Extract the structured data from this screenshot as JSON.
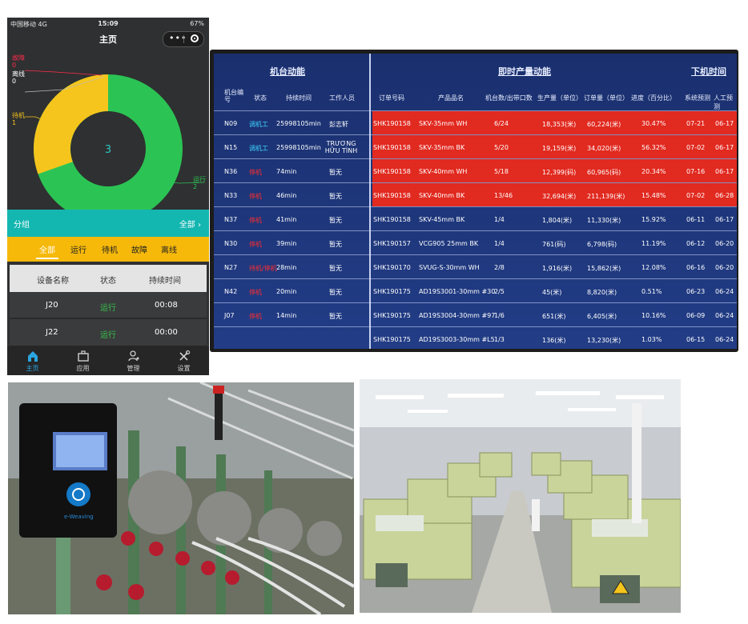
{
  "phone": {
    "status": {
      "carrier": "中国移动 4G",
      "time": "15:09",
      "battery": "67%"
    },
    "title": "主页",
    "donut": {
      "center": "3",
      "legend": [
        {
          "name": "故障",
          "value": "0",
          "color": "#ff2e4d"
        },
        {
          "name": "离线",
          "value": "0",
          "color": "#ffffff"
        },
        {
          "name": "待机",
          "value": "1",
          "color": "#f5c51d"
        },
        {
          "name": "运行",
          "value": "2",
          "color": "#2bc454"
        }
      ]
    },
    "group_label": "分组",
    "group_all": "全部",
    "filter_tabs": [
      "全部",
      "运行",
      "待机",
      "故障",
      "离线"
    ],
    "table": {
      "headers": [
        "设备名称",
        "状态",
        "持续时间"
      ],
      "rows": [
        {
          "name": "J20",
          "status": "运行",
          "duration": "00:08"
        },
        {
          "name": "J22",
          "status": "运行",
          "duration": "00:00"
        }
      ]
    },
    "tabbar": [
      "主页",
      "应用",
      "管理",
      "设置"
    ]
  },
  "board": {
    "sections": [
      "机台动能",
      "即时产量动能",
      "下机时间"
    ],
    "headers": [
      "机台编号",
      "状态",
      "持续时间",
      "工作人员",
      "订单号码",
      "产品品名",
      "机台数/出带口数",
      "生产量（单位）",
      "订单量（单位）",
      "进度（百分比）",
      "系统预测",
      "人工预测"
    ],
    "rows": [
      {
        "id": "N09",
        "state": "调机工",
        "dur": "25998105min",
        "worker": "彭志轩",
        "order": "SHK190158",
        "product": "SKV-35mm WH",
        "ratio": "6/24",
        "output": "18,353(米)",
        "qty": "60,224(米)",
        "progress": "30.47%",
        "sys": "07-21",
        "manual": "06-17",
        "red": true
      },
      {
        "id": "N15",
        "state": "调机工",
        "dur": "25998105min",
        "worker": "TRƯƠNG HỮU TÌNH",
        "order": "SHK190158",
        "product": "SKV-35mm BK",
        "ratio": "5/20",
        "output": "19,159(米)",
        "qty": "34,020(米)",
        "progress": "56.32%",
        "sys": "07-02",
        "manual": "06-17",
        "red": true
      },
      {
        "id": "N36",
        "state": "停机",
        "dur": "74min",
        "worker": "暂无",
        "order": "SHK190158",
        "product": "SKV-40mm WH",
        "ratio": "5/18",
        "output": "12,399(码)",
        "qty": "60,965(码)",
        "progress": "20.34%",
        "sys": "07-16",
        "manual": "06-17",
        "red": true
      },
      {
        "id": "N33",
        "state": "停机",
        "dur": "46min",
        "worker": "暂无",
        "order": "SHK190158",
        "product": "SKV-40mm BK",
        "ratio": "13/46",
        "output": "32,694(米)",
        "qty": "211,139(米)",
        "progress": "15.48%",
        "sys": "07-02",
        "manual": "06-28",
        "red": true
      },
      {
        "id": "N37",
        "state": "停机",
        "dur": "41min",
        "worker": "暂无",
        "order": "SHK190158",
        "product": "SKV-45mm BK",
        "ratio": "1/4",
        "output": "1,804(米)",
        "qty": "11,330(米)",
        "progress": "15.92%",
        "sys": "06-11",
        "manual": "06-17",
        "red": false
      },
      {
        "id": "N30",
        "state": "停机",
        "dur": "39min",
        "worker": "暂无",
        "order": "SHK190157",
        "product": "VCG905 25mm BK",
        "ratio": "1/4",
        "output": "761(码)",
        "qty": "6,798(码)",
        "progress": "11.19%",
        "sys": "06-12",
        "manual": "06-20",
        "red": false
      },
      {
        "id": "N27",
        "state": "待机/停机",
        "dur": "28min",
        "worker": "暂无",
        "order": "SHK190170",
        "product": "SVUG-S-30mm WH",
        "ratio": "2/8",
        "output": "1,916(米)",
        "qty": "15,862(米)",
        "progress": "12.08%",
        "sys": "06-16",
        "manual": "06-20",
        "red": false
      },
      {
        "id": "N42",
        "state": "停机",
        "dur": "20min",
        "worker": "暂无",
        "order": "SHK190175",
        "product": "AD19S3001-30mm #30",
        "ratio": "2/5",
        "output": "45(米)",
        "qty": "8,820(米)",
        "progress": "0.51%",
        "sys": "06-23",
        "manual": "06-24",
        "red": false
      },
      {
        "id": "J07",
        "state": "停机",
        "dur": "14min",
        "worker": "暂无",
        "order": "SHK190175",
        "product": "AD19S3004-30mm #97",
        "ratio": "1/6",
        "output": "651(米)",
        "qty": "6,405(米)",
        "progress": "10.16%",
        "sys": "06-09",
        "manual": "06-24",
        "red": false
      },
      {
        "id": "",
        "state": "",
        "dur": "",
        "worker": "",
        "order": "SHK190175",
        "product": "AD19S3003-30mm #L5",
        "ratio": "1/3",
        "output": "136(米)",
        "qty": "13,230(米)",
        "progress": "1.03%",
        "sys": "06-15",
        "manual": "06-24",
        "red": false
      }
    ]
  },
  "photos": {
    "device_brand": "e-Weaving"
  }
}
